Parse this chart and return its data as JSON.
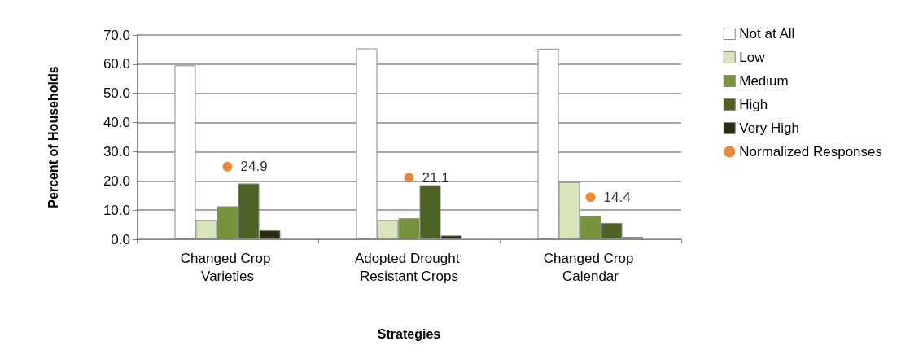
{
  "chart_data": {
    "type": "bar",
    "xlabel": "Strategies",
    "ylabel": "Percent of Households",
    "categories": [
      "Changed Crop Varieties",
      "Adopted Drought Resistant Crops",
      "Changed Crop Calendar"
    ],
    "series": [
      {
        "name": "Not at All",
        "color": "#ffffff",
        "values": [
          59.6,
          65.4,
          65.3
        ]
      },
      {
        "name": "Low",
        "color": "#d8e4bc",
        "values": [
          6.6,
          6.6,
          19.6
        ]
      },
      {
        "name": "Medium",
        "color": "#77933c",
        "values": [
          11.3,
          7.2,
          8.0
        ]
      },
      {
        "name": "High",
        "color": "#4f6228",
        "values": [
          19.1,
          18.5,
          5.6
        ]
      },
      {
        "name": "Very High",
        "color": "#262f14",
        "values": [
          3.1,
          1.3,
          0.8
        ]
      },
      {
        "name": "Normalized Responses",
        "type": "scatter",
        "color": "#e46c0a",
        "marker": "circle",
        "values": [
          24.9,
          21.1,
          14.4
        ],
        "value_labels": [
          "24.9",
          "21.1",
          "14.4"
        ]
      }
    ],
    "ylim": [
      0,
      70
    ],
    "yticks": [
      {
        "value": 0,
        "label": "0.0"
      },
      {
        "value": 10,
        "label": "10.0"
      },
      {
        "value": 20,
        "label": "20.0"
      },
      {
        "value": 30,
        "label": "30.0"
      },
      {
        "value": 40,
        "label": "40.0"
      },
      {
        "value": 50,
        "label": "50.0"
      },
      {
        "value": 60,
        "label": "60.0"
      },
      {
        "value": 70,
        "label": "70.0"
      }
    ],
    "grid": "y",
    "legend": "right"
  }
}
